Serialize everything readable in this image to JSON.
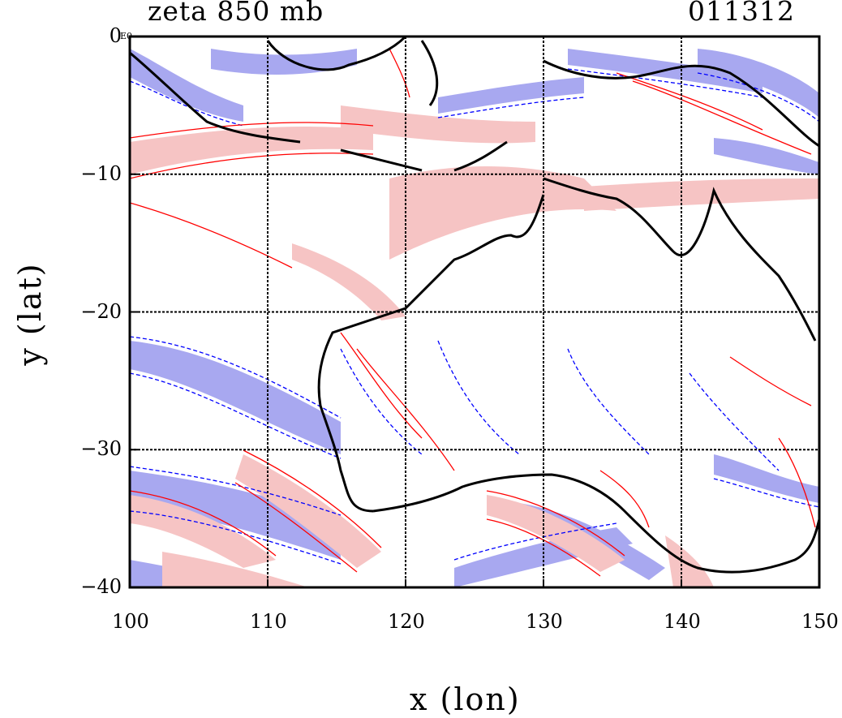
{
  "header": {
    "title": "zeta 850 mb",
    "timestamp": "011312",
    "corner_mark": "E0"
  },
  "axes": {
    "xlabel": "x (lon)",
    "ylabel": "y (lat)",
    "xlim": [
      100,
      150
    ],
    "ylim": [
      -40,
      0
    ],
    "xticks": [
      "100",
      "110",
      "120",
      "130",
      "140",
      "150"
    ],
    "yticks": [
      "0",
      "−10",
      "−20",
      "−30",
      "−40"
    ],
    "grid": true
  },
  "colors": {
    "positive_fill": "#f6c4c4",
    "positive_contour": "#ff0000",
    "negative_fill": "#a8a8f0",
    "negative_contour": "#0000ff",
    "coastline": "#000000"
  }
}
